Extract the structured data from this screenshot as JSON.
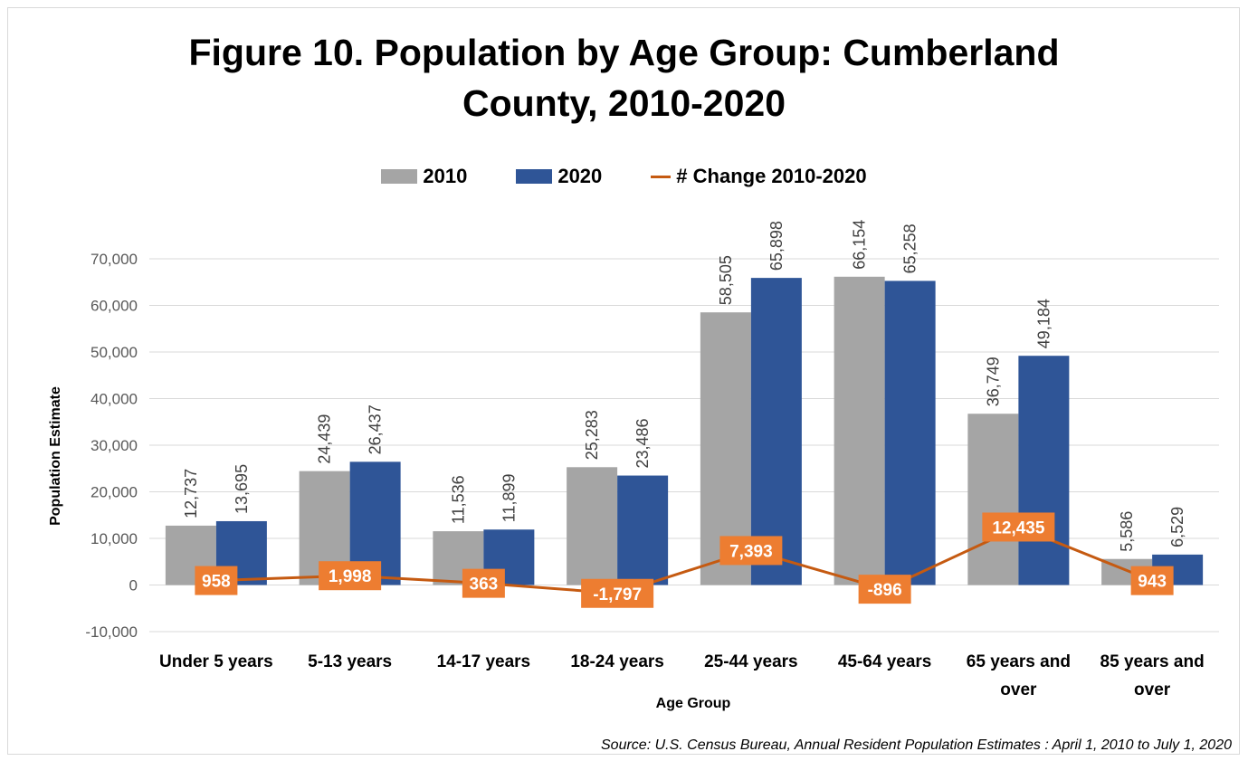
{
  "chart_data": {
    "type": "bar",
    "title": "Figure 10. Population by Age Group: Cumberland County, 2010-2020",
    "title_lines": [
      "Figure 10. Population by Age Group: Cumberland",
      "County, 2010-2020"
    ],
    "xlabel": "Age Group",
    "ylabel": "Population Estimate",
    "categories": [
      [
        "Under 5 years"
      ],
      [
        "5-13 years"
      ],
      [
        "14-17 years"
      ],
      [
        "18-24 years"
      ],
      [
        "25-44 years"
      ],
      [
        "45-64 years"
      ],
      [
        "65 years and",
        "over"
      ],
      [
        "85 years and",
        "over"
      ]
    ],
    "series": [
      {
        "name": "2010",
        "kind": "bar",
        "color": "#a5a5a5",
        "values": [
          12737,
          24439,
          11536,
          25283,
          58505,
          66154,
          36749,
          5586
        ],
        "labels": [
          "12,737",
          "24,439",
          "11,536",
          "25,283",
          "58,505",
          "66,154",
          "36,749",
          "5,586"
        ]
      },
      {
        "name": "2020",
        "kind": "bar",
        "color": "#2f5597",
        "values": [
          13695,
          26437,
          11899,
          23486,
          65898,
          65258,
          49184,
          6529
        ],
        "labels": [
          "13,695",
          "26,437",
          "11,899",
          "23,486",
          "65,898",
          "65,258",
          "49,184",
          "6,529"
        ]
      },
      {
        "name": "# Change 2010-2020",
        "kind": "line",
        "color": "#c55a11",
        "label_bg": "#ed7d31",
        "values": [
          958,
          1998,
          363,
          -1797,
          7393,
          -896,
          12435,
          943
        ],
        "labels": [
          "958",
          "1,998",
          "363",
          "-1,797",
          "7,393",
          "-896",
          "12,435",
          "943"
        ]
      }
    ],
    "ylim": [
      -10000,
      70000
    ],
    "yticks": [
      -10000,
      0,
      10000,
      20000,
      30000,
      40000,
      50000,
      60000,
      70000
    ],
    "ytick_labels": [
      "-10,000",
      "0",
      "10,000",
      "20,000",
      "30,000",
      "40,000",
      "50,000",
      "60,000",
      "70,000"
    ],
    "grid": true,
    "legend_position": "top"
  },
  "source": "Source: U.S. Census Bureau, Annual Resident Population Estimates : April 1, 2010 to July 1, 2020"
}
